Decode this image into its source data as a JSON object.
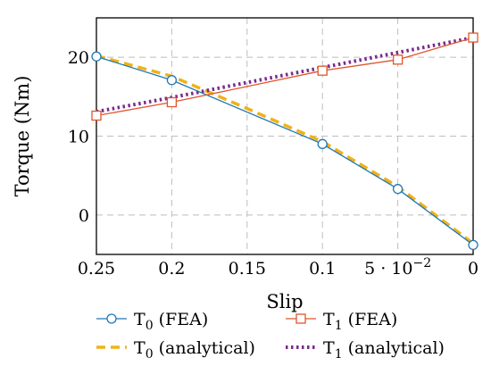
{
  "chart_data": {
    "type": "line",
    "xlabel": "Slip",
    "ylabel": "Torque (Nm)",
    "xlim": [
      0.25,
      0
    ],
    "ylim": [
      -5,
      25
    ],
    "x_reversed": true,
    "grid": true,
    "grid_style": "dashed",
    "legend_placement": "bottom",
    "x_ticks": [
      {
        "value": 0.25,
        "label": "0.25"
      },
      {
        "value": 0.2,
        "label": "0.2"
      },
      {
        "value": 0.15,
        "label": "0.15"
      },
      {
        "value": 0.1,
        "label": "0.1"
      },
      {
        "value": 0.05,
        "label": "5 · 10",
        "exponent": "−2"
      },
      {
        "value": 0,
        "label": "0"
      }
    ],
    "y_ticks": [
      {
        "value": 0,
        "label": "0"
      },
      {
        "value": 10,
        "label": "10"
      },
      {
        "value": 20,
        "label": "20"
      }
    ],
    "series": [
      {
        "name": "T0 (FEA)",
        "legend_base": "T",
        "legend_sub": "0",
        "legend_suffix": " (FEA)",
        "style": "solid-circle",
        "color": "#1f77b4",
        "x": [
          0.25,
          0.2,
          0.1,
          0.05,
          0
        ],
        "y": [
          20.1,
          17.1,
          9.0,
          3.3,
          -3.8
        ]
      },
      {
        "name": "T1 (FEA)",
        "legend_base": "T",
        "legend_sub": "1",
        "legend_suffix": " (FEA)",
        "style": "solid-square",
        "color": "#e0562b",
        "x": [
          0.25,
          0.2,
          0.1,
          0.05,
          0
        ],
        "y": [
          12.6,
          14.3,
          18.3,
          19.7,
          22.5
        ]
      },
      {
        "name": "T0 (analytical)",
        "legend_base": "T",
        "legend_sub": "0",
        "legend_suffix": " (analytical)",
        "style": "dashed",
        "color": "#f0b21a",
        "x": [
          0.25,
          0.2,
          0.15,
          0.1,
          0.05,
          0
        ],
        "y": [
          20.2,
          17.6,
          13.5,
          9.3,
          3.6,
          -3.6
        ]
      },
      {
        "name": "T1 (analytical)",
        "legend_base": "T",
        "legend_sub": "1",
        "legend_suffix": " (analytical)",
        "style": "dotted",
        "color": "#7a2a8c",
        "x": [
          0.25,
          0.2,
          0.15,
          0.1,
          0.05,
          0
        ],
        "y": [
          13.1,
          14.9,
          16.8,
          18.7,
          20.6,
          22.5
        ]
      }
    ]
  }
}
